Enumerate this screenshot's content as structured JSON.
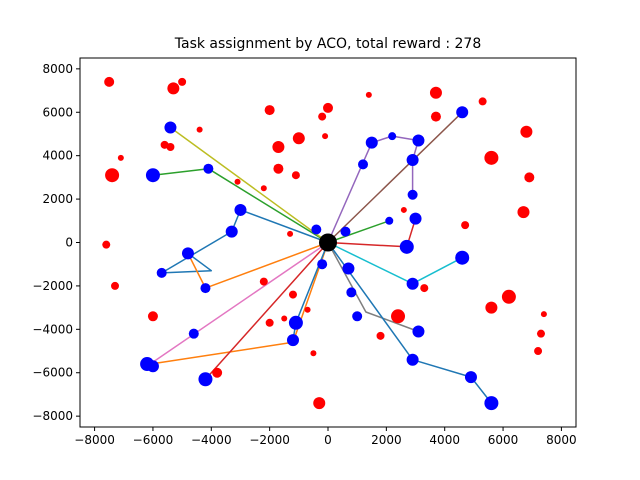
{
  "chart_data": {
    "type": "scatter",
    "title": "Task assignment by ACO, total reward : 278",
    "xlabel": "",
    "ylabel": "",
    "xlim": [
      -8500,
      8500
    ],
    "ylim": [
      -8500,
      8500
    ],
    "xticks": [
      -8000,
      -6000,
      -4000,
      -2000,
      0,
      2000,
      4000,
      6000,
      8000
    ],
    "yticks": [
      -8000,
      -6000,
      -4000,
      -2000,
      0,
      2000,
      4000,
      6000,
      8000
    ],
    "grid": false,
    "depot": {
      "x": 0,
      "y": 0,
      "color": "#000000"
    },
    "routes": [
      {
        "color": "#1f77b4",
        "points": [
          [
            0,
            0
          ],
          [
            -3000,
            1500
          ],
          [
            -3300,
            500
          ],
          [
            -5700,
            -1400
          ],
          [
            -4000,
            -1300
          ],
          [
            -4800,
            -500
          ]
        ]
      },
      {
        "color": "#ff7f0e",
        "points": [
          [
            0,
            0
          ],
          [
            -4200,
            -2100
          ],
          [
            -4800,
            -500
          ]
        ]
      },
      {
        "color": "#2ca02c",
        "points": [
          [
            0,
            0
          ],
          [
            -4100,
            3400
          ],
          [
            -6000,
            3100
          ]
        ]
      },
      {
        "color": "#d62728",
        "points": [
          [
            0,
            0
          ],
          [
            2700,
            -200
          ],
          [
            3000,
            1100
          ]
        ]
      },
      {
        "color": "#9467bd",
        "points": [
          [
            0,
            0
          ],
          [
            1500,
            4600
          ],
          [
            2200,
            4900
          ],
          [
            3100,
            4700
          ],
          [
            2900,
            3800
          ],
          [
            2900,
            2200
          ]
        ]
      },
      {
        "color": "#8c564b",
        "points": [
          [
            0,
            0
          ],
          [
            4600,
            6000
          ]
        ]
      },
      {
        "color": "#e377c2",
        "points": [
          [
            0,
            0
          ],
          [
            -6100,
            -5600
          ]
        ]
      },
      {
        "color": "#7f7f7f",
        "points": [
          [
            0,
            0
          ],
          [
            1300,
            -3200
          ],
          [
            3100,
            -4100
          ]
        ]
      },
      {
        "color": "#bcbd22",
        "points": [
          [
            0,
            0
          ],
          [
            -5400,
            5300
          ]
        ]
      },
      {
        "color": "#17becf",
        "points": [
          [
            0,
            0
          ],
          [
            2900,
            -1900
          ],
          [
            4600,
            -700
          ]
        ]
      },
      {
        "color": "#1f77b4",
        "points": [
          [
            0,
            0
          ],
          [
            2900,
            -5400
          ],
          [
            4900,
            -6200
          ],
          [
            5600,
            -7400
          ]
        ]
      },
      {
        "color": "#2ca02c",
        "points": [
          [
            0,
            0
          ],
          [
            2100,
            1000
          ]
        ]
      },
      {
        "color": "#ff7f0e",
        "points": [
          [
            0,
            0
          ],
          [
            -1200,
            -4600
          ],
          [
            -6100,
            -5600
          ]
        ]
      },
      {
        "color": "#d62728",
        "points": [
          [
            0,
            0
          ],
          [
            -4200,
            -6300
          ]
        ]
      },
      {
        "color": "#1f77b4",
        "points": [
          [
            0,
            0
          ],
          [
            -1100,
            -3700
          ],
          [
            -1200,
            -4500
          ]
        ]
      }
    ],
    "assigned_tasks": [
      {
        "x": -5400,
        "y": 5300,
        "s": 6
      },
      {
        "x": -6000,
        "y": 3100,
        "s": 7
      },
      {
        "x": -4100,
        "y": 3400,
        "s": 5
      },
      {
        "x": -3000,
        "y": 1500,
        "s": 6
      },
      {
        "x": -3300,
        "y": 500,
        "s": 6
      },
      {
        "x": -4800,
        "y": -500,
        "s": 6
      },
      {
        "x": -5700,
        "y": -1400,
        "s": 5
      },
      {
        "x": -4200,
        "y": -2100,
        "s": 5
      },
      {
        "x": -4600,
        "y": -4200,
        "s": 5
      },
      {
        "x": -6200,
        "y": -5600,
        "s": 7
      },
      {
        "x": -6000,
        "y": -5700,
        "s": 6
      },
      {
        "x": -4200,
        "y": -6300,
        "s": 7
      },
      {
        "x": -1200,
        "y": -4500,
        "s": 6
      },
      {
        "x": -1100,
        "y": -3700,
        "s": 7
      },
      {
        "x": -400,
        "y": 600,
        "s": 5
      },
      {
        "x": 600,
        "y": 500,
        "s": 5
      },
      {
        "x": -200,
        "y": -1000,
        "s": 5
      },
      {
        "x": 700,
        "y": -1200,
        "s": 6
      },
      {
        "x": 800,
        "y": -2300,
        "s": 5
      },
      {
        "x": 1000,
        "y": -3400,
        "s": 5
      },
      {
        "x": 1200,
        "y": 3600,
        "s": 5
      },
      {
        "x": 1500,
        "y": 4600,
        "s": 6
      },
      {
        "x": 2200,
        "y": 4900,
        "s": 4
      },
      {
        "x": 3100,
        "y": 4700,
        "s": 6
      },
      {
        "x": 2900,
        "y": 3800,
        "s": 6
      },
      {
        "x": 2900,
        "y": 2200,
        "s": 5
      },
      {
        "x": 3000,
        "y": 1100,
        "s": 6
      },
      {
        "x": 2700,
        "y": -200,
        "s": 7
      },
      {
        "x": 2100,
        "y": 1000,
        "s": 4
      },
      {
        "x": 4600,
        "y": 6000,
        "s": 6
      },
      {
        "x": 2900,
        "y": -1900,
        "s": 6
      },
      {
        "x": 4600,
        "y": -700,
        "s": 7
      },
      {
        "x": 3100,
        "y": -4100,
        "s": 6
      },
      {
        "x": 2900,
        "y": -5400,
        "s": 6
      },
      {
        "x": 4900,
        "y": -6200,
        "s": 6
      },
      {
        "x": 5600,
        "y": -7400,
        "s": 7
      }
    ],
    "unassigned_tasks": [
      {
        "x": -7500,
        "y": 7400,
        "s": 5
      },
      {
        "x": -5300,
        "y": 7100,
        "s": 6
      },
      {
        "x": -5000,
        "y": 7400,
        "s": 4
      },
      {
        "x": -7100,
        "y": 3900,
        "s": 3
      },
      {
        "x": -7400,
        "y": 3100,
        "s": 7
      },
      {
        "x": -5600,
        "y": 4500,
        "s": 4
      },
      {
        "x": -5400,
        "y": 4400,
        "s": 4
      },
      {
        "x": -4400,
        "y": 5200,
        "s": 3
      },
      {
        "x": -7600,
        "y": -100,
        "s": 4
      },
      {
        "x": -7300,
        "y": -2000,
        "s": 4
      },
      {
        "x": -6000,
        "y": -3400,
        "s": 5
      },
      {
        "x": -3800,
        "y": -6000,
        "s": 5
      },
      {
        "x": -3100,
        "y": 2800,
        "s": 3
      },
      {
        "x": -2200,
        "y": 2500,
        "s": 3
      },
      {
        "x": -2000,
        "y": 6100,
        "s": 5
      },
      {
        "x": -1700,
        "y": 4400,
        "s": 6
      },
      {
        "x": -1700,
        "y": 3400,
        "s": 5
      },
      {
        "x": -1100,
        "y": 3100,
        "s": 4
      },
      {
        "x": -1000,
        "y": 4800,
        "s": 6
      },
      {
        "x": -200,
        "y": 5800,
        "s": 4
      },
      {
        "x": 0,
        "y": 6200,
        "s": 5
      },
      {
        "x": -100,
        "y": 4900,
        "s": 3
      },
      {
        "x": 1400,
        "y": 6800,
        "s": 3
      },
      {
        "x": -1300,
        "y": 400,
        "s": 3
      },
      {
        "x": -2200,
        "y": -1800,
        "s": 4
      },
      {
        "x": -1200,
        "y": -2400,
        "s": 4
      },
      {
        "x": -2000,
        "y": -3700,
        "s": 4
      },
      {
        "x": -1500,
        "y": -3500,
        "s": 3
      },
      {
        "x": -700,
        "y": -3100,
        "s": 3
      },
      {
        "x": -500,
        "y": -5100,
        "s": 3
      },
      {
        "x": -300,
        "y": -7400,
        "s": 6
      },
      {
        "x": 1800,
        "y": -4300,
        "s": 4
      },
      {
        "x": 2400,
        "y": -3400,
        "s": 7
      },
      {
        "x": 2600,
        "y": 1500,
        "s": 3
      },
      {
        "x": 3300,
        "y": -2100,
        "s": 4
      },
      {
        "x": 3700,
        "y": 6900,
        "s": 6
      },
      {
        "x": 3700,
        "y": 5800,
        "s": 5
      },
      {
        "x": 4700,
        "y": 800,
        "s": 4
      },
      {
        "x": 5300,
        "y": 6500,
        "s": 4
      },
      {
        "x": 5600,
        "y": 3900,
        "s": 7
      },
      {
        "x": 5600,
        "y": -3000,
        "s": 6
      },
      {
        "x": 6200,
        "y": -2500,
        "s": 7
      },
      {
        "x": 6800,
        "y": 5100,
        "s": 6
      },
      {
        "x": 6900,
        "y": 3000,
        "s": 5
      },
      {
        "x": 6700,
        "y": 1400,
        "s": 6
      },
      {
        "x": 7400,
        "y": -3300,
        "s": 3
      },
      {
        "x": 7300,
        "y": -4200,
        "s": 4
      },
      {
        "x": 7200,
        "y": -5000,
        "s": 4
      }
    ],
    "colors": {
      "assigned": "#0000ff",
      "unassigned": "#ff0000"
    }
  }
}
